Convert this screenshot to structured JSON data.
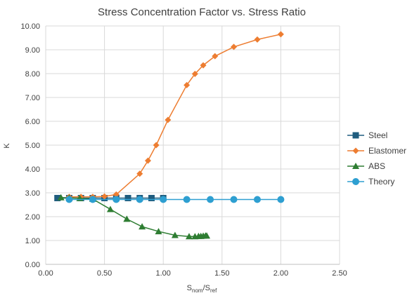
{
  "chart_data": {
    "type": "scatter",
    "title": "Stress Concentration Factor vs. Stress Ratio",
    "xlabel": {
      "main": "S",
      "sub1": "nom",
      "sep": "/S",
      "sub2": "ref"
    },
    "ylabel": "K",
    "xlim": [
      0,
      2.5
    ],
    "ylim": [
      0,
      10
    ],
    "xticks": [
      0,
      0.5,
      1,
      1.5,
      2,
      2.5
    ],
    "yticks": [
      0,
      1,
      2,
      3,
      4,
      5,
      6,
      7,
      8,
      9,
      10
    ],
    "xtick_decimals": 2,
    "ytick_decimals": 2,
    "grid": true,
    "legend_position": "right",
    "series": [
      {
        "name": "Steel",
        "color": "#1F5C7E",
        "marker": "square",
        "x": [
          0.1,
          0.2,
          0.3,
          0.4,
          0.5,
          0.6,
          0.7,
          0.8,
          0.9,
          1.0
        ],
        "y": [
          2.78,
          2.78,
          2.78,
          2.78,
          2.78,
          2.78,
          2.78,
          2.78,
          2.78,
          2.78
        ]
      },
      {
        "name": "Elastomer",
        "color": "#ED7D31",
        "marker": "diamond",
        "x": [
          0.2,
          0.3,
          0.4,
          0.5,
          0.6,
          0.8,
          0.87,
          0.94,
          1.04,
          1.2,
          1.27,
          1.34,
          1.44,
          1.6,
          1.8,
          2.0
        ],
        "y": [
          2.83,
          2.83,
          2.83,
          2.85,
          2.93,
          3.8,
          4.35,
          5.0,
          6.06,
          7.52,
          7.99,
          8.35,
          8.73,
          9.12,
          9.43,
          9.65
        ]
      },
      {
        "name": "ABS",
        "color": "#2E7D32",
        "marker": "triangle",
        "x": [
          0.13,
          0.2,
          0.29,
          0.4,
          0.55,
          0.69,
          0.82,
          0.96,
          1.1,
          1.22,
          1.27,
          1.3,
          1.32,
          1.34,
          1.36,
          1.37
        ],
        "y": [
          2.8,
          2.79,
          2.77,
          2.74,
          2.31,
          1.9,
          1.58,
          1.38,
          1.22,
          1.17,
          1.17,
          1.18,
          1.18,
          1.19,
          1.2,
          1.2
        ]
      },
      {
        "name": "Theory",
        "color": "#2E9FD1",
        "marker": "circle",
        "x": [
          0.2,
          0.4,
          0.6,
          0.8,
          1.0,
          1.2,
          1.4,
          1.6,
          1.8,
          2.0
        ],
        "y": [
          2.72,
          2.72,
          2.72,
          2.72,
          2.72,
          2.72,
          2.72,
          2.72,
          2.72,
          2.72
        ]
      }
    ]
  }
}
